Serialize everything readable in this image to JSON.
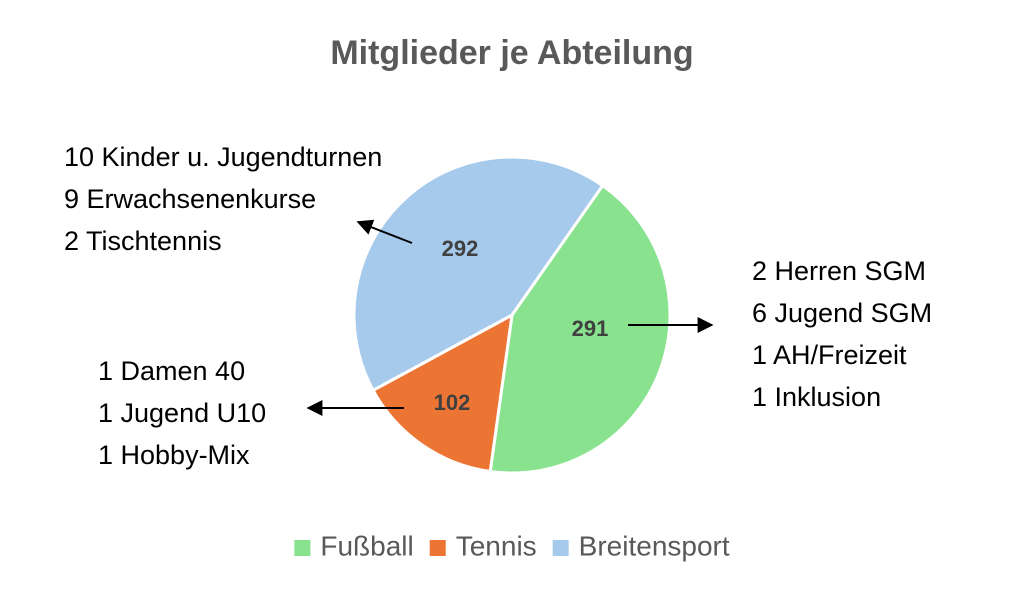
{
  "chart_data": {
    "type": "pie",
    "title": "Mitglieder je Abteilung",
    "categories": [
      "Fußball",
      "Tennis",
      "Breitensport"
    ],
    "values": [
      291,
      102,
      292
    ],
    "colors": [
      "#88E28E",
      "#ED7534",
      "#A6CAEC"
    ],
    "legend_position": "bottom",
    "annotations": [
      {
        "category": "Fußball",
        "lines": [
          "2 Herren SGM",
          "6 Jugend SGM",
          "1 AH/Freizeit",
          "1 Inklusion"
        ]
      },
      {
        "category": "Tennis",
        "lines": [
          "1 Damen 40",
          "1 Jugend U10",
          "1 Hobby-Mix"
        ]
      },
      {
        "category": "Breitensport",
        "lines": [
          "10 Kinder u. Jugendturnen",
          "9 Erwachsenenkurse",
          "2 Tischtennis"
        ]
      }
    ]
  }
}
